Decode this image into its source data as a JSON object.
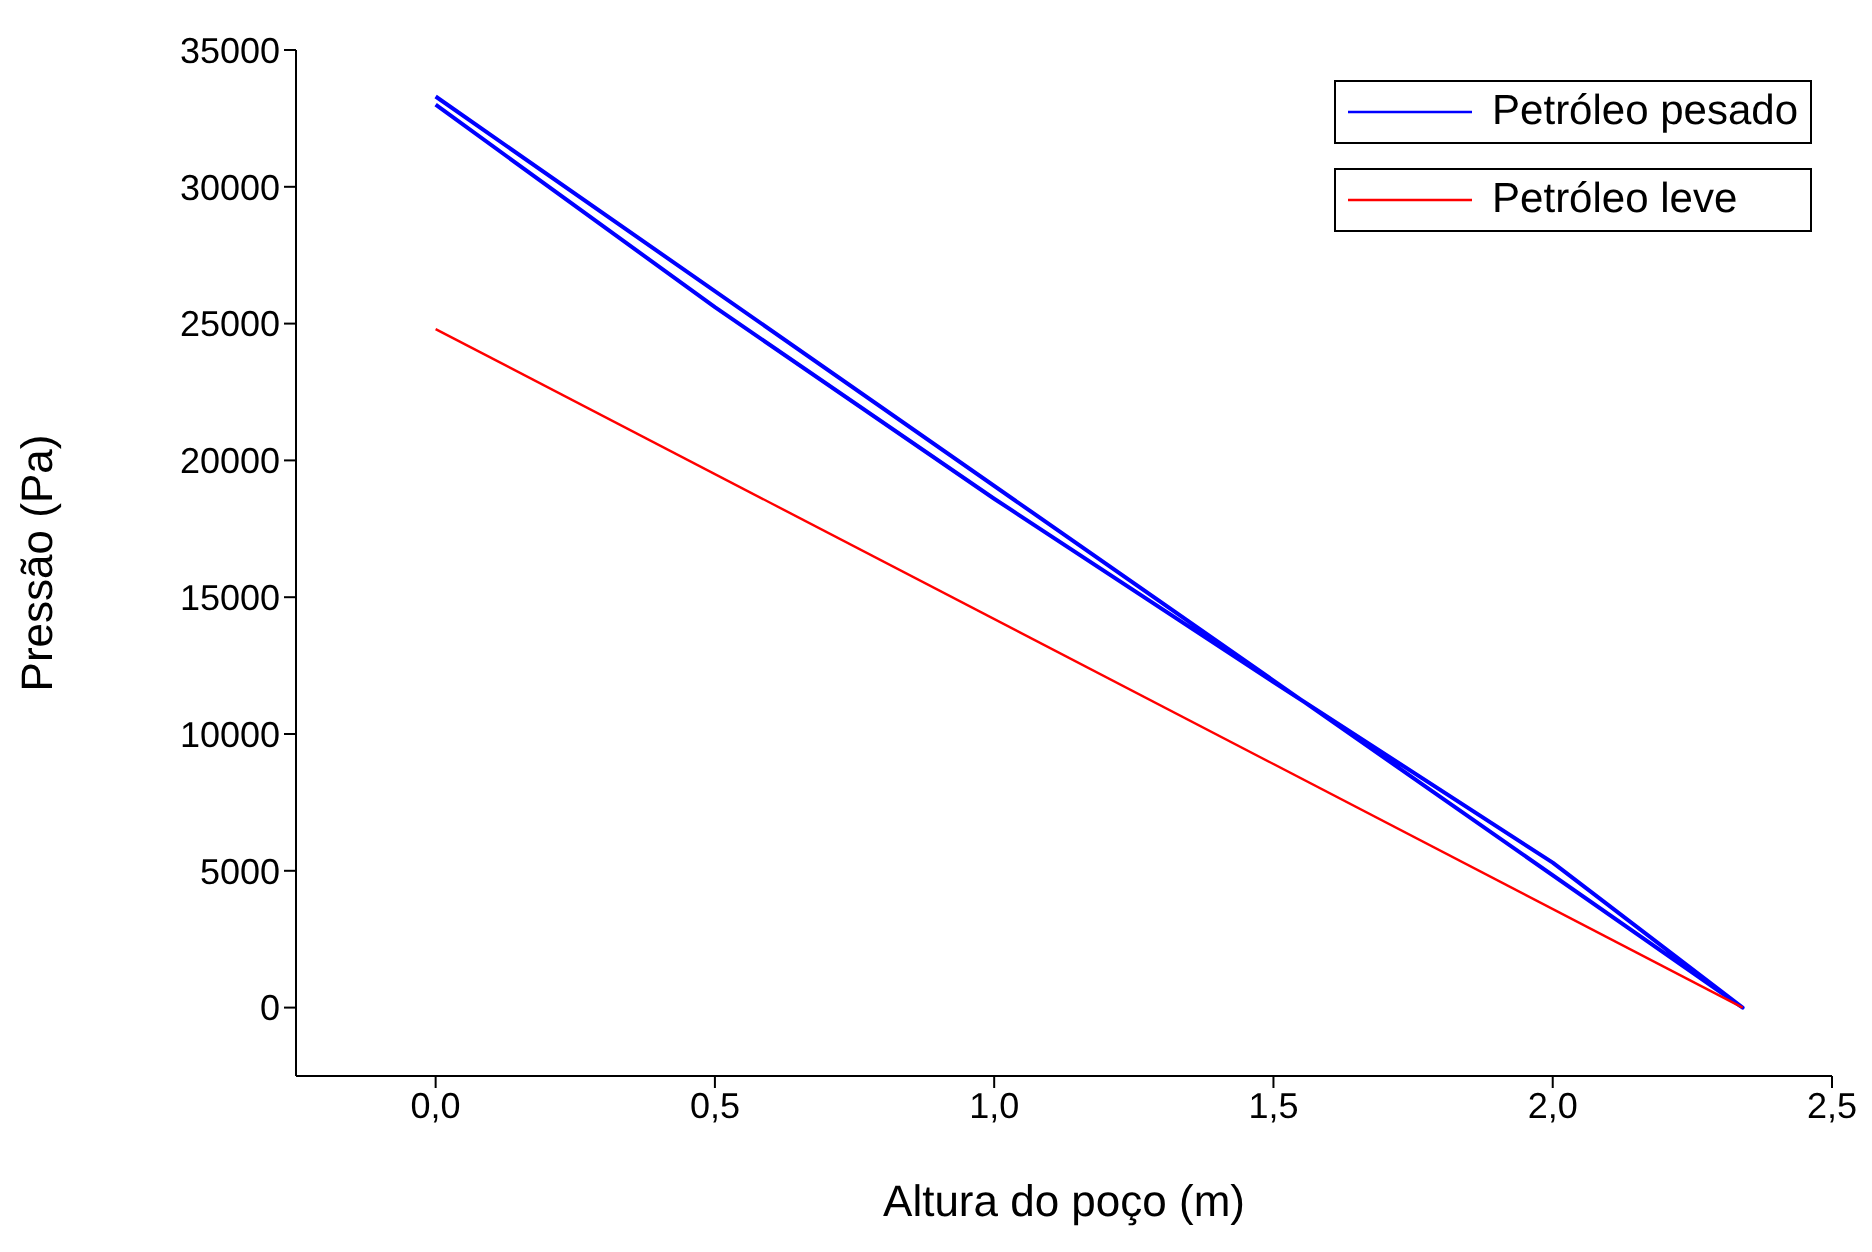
{
  "chart_data": {
    "type": "line",
    "xlabel": "Altura do poço (m)",
    "ylabel": "Pressão (Pa)",
    "xlim": [
      -0.25,
      2.5
    ],
    "xticks": [
      {
        "value": 0,
        "label": "0,0"
      },
      {
        "value": 0.5,
        "label": "0,5"
      },
      {
        "value": 1,
        "label": "1,0"
      },
      {
        "value": 1.5,
        "label": "1,5"
      },
      {
        "value": 2,
        "label": "2,0"
      },
      {
        "value": 2.5,
        "label": "2,5"
      }
    ],
    "ylim": [
      -2500,
      35000
    ],
    "yticks": [
      0,
      5000,
      10000,
      15000,
      20000,
      25000,
      30000,
      35000
    ],
    "grid": false,
    "legend": "top right",
    "marker": "none",
    "line_style": "solid",
    "series": [
      {
        "name": "Petróleo pesado",
        "color": "#0000ff",
        "x": [
          0,
          2.34,
          2.0,
          1.5,
          1.0,
          0.5,
          0
        ],
        "values": [
          33300,
          0,
          5300,
          11900,
          18600,
          25600,
          33000
        ]
      },
      {
        "name": "Petróleo leve",
        "color": "#ff0000",
        "x": [
          0,
          2.34
        ],
        "values": [
          24800,
          0
        ]
      }
    ]
  }
}
